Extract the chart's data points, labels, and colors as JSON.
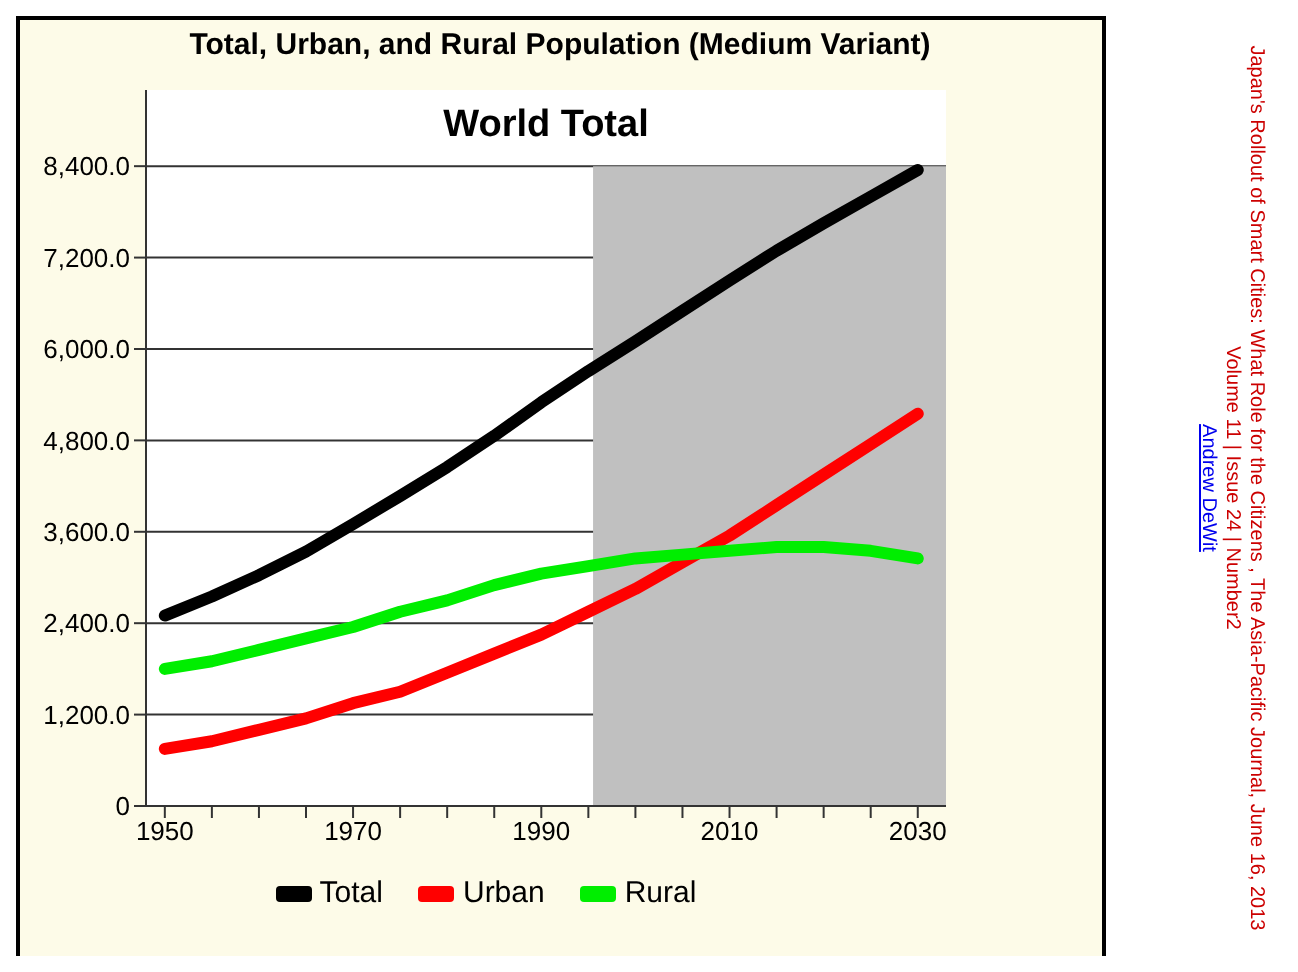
{
  "chart_data": {
    "type": "line",
    "title": "Total, Urban, and Rural Population (Medium Variant)",
    "subtitle": "World Total",
    "x": [
      1950,
      1955,
      1960,
      1965,
      1970,
      1975,
      1980,
      1985,
      1990,
      1995,
      2000,
      2005,
      2010,
      2015,
      2020,
      2025,
      2030
    ],
    "series": [
      {
        "name": "Total",
        "color": "#000000",
        "values": [
          2500,
          2750,
          3030,
          3340,
          3700,
          4070,
          4450,
          4860,
          5300,
          5710,
          6100,
          6500,
          6900,
          7290,
          7650,
          8000,
          8350
        ]
      },
      {
        "name": "Urban",
        "color": "#ff0000",
        "values": [
          750,
          850,
          1000,
          1150,
          1350,
          1500,
          1750,
          2000,
          2250,
          2550,
          2850,
          3200,
          3550,
          3950,
          4350,
          4750,
          5150
        ]
      },
      {
        "name": "Rural",
        "color": "#00ee00",
        "values": [
          1800,
          1900,
          2050,
          2200,
          2350,
          2550,
          2700,
          2900,
          3050,
          3150,
          3250,
          3300,
          3350,
          3400,
          3400,
          3350,
          3250
        ]
      }
    ],
    "xlim": [
      1948,
      2033
    ],
    "xticks": [
      1950,
      {
        "value": 1955,
        "label": null
      },
      {
        "value": 1960,
        "label": null
      },
      {
        "value": 1965,
        "label": null
      },
      1970,
      {
        "value": 1975,
        "label": null
      },
      {
        "value": 1980,
        "label": null
      },
      {
        "value": 1985,
        "label": null
      },
      1990,
      {
        "value": 1995,
        "label": null
      },
      {
        "value": 2000,
        "label": null
      },
      {
        "value": 2005,
        "label": null
      },
      2010,
      {
        "value": 2015,
        "label": null
      },
      {
        "value": 2020,
        "label": null
      },
      {
        "value": 2025,
        "label": null
      },
      2030
    ],
    "ylim": [
      0,
      9400
    ],
    "yticks": [
      0,
      {
        "value": 1200,
        "label": "1,200.0"
      },
      {
        "value": 2400,
        "label": "2,400.0"
      },
      {
        "value": 3600,
        "label": "3,600.0"
      },
      {
        "value": 4800,
        "label": "4,800.0"
      },
      {
        "value": 6000,
        "label": "6,000.0"
      },
      {
        "value": 7200,
        "label": "7,200.0"
      },
      {
        "value": 8400,
        "label": "8,400.0"
      }
    ],
    "grid": "y",
    "legend": "bottom",
    "marker": "none",
    "line_style": "solid",
    "bands": [
      {
        "axis": "x",
        "from": 1995.5,
        "to": 2033,
        "color": "#c0c0c0"
      }
    ],
    "annotations": [
      "Japan's Rollout of Smart Cities: What Role for the Citizens , The Asia-Pacific Journal, June 16, 2013",
      "Volume 11 | Issue 24 | Number2",
      "Andrew DeWit"
    ]
  }
}
